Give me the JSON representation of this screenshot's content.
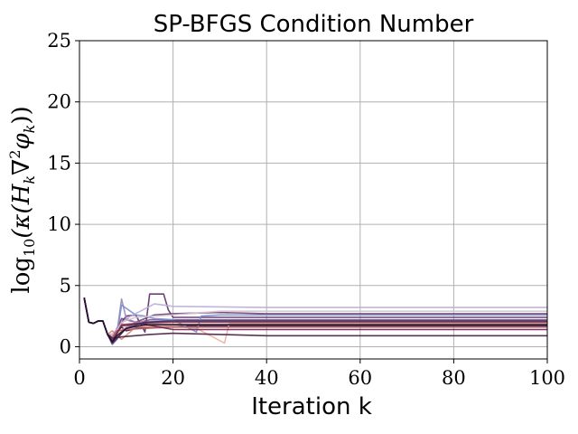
{
  "chart_data": {
    "type": "line",
    "title": "SP-BFGS Condition Number",
    "xlabel": "Iteration k",
    "ylabel": "log10(κ(H_k ∇²φ_k))",
    "ylabel_parts": {
      "fn": "log",
      "sub": "10",
      "body": "(κ(H",
      "k1": "k",
      "nabla": "∇",
      "sq": "2",
      "phi": "φ",
      "k2": "k",
      "close": "))"
    },
    "xlim": [
      0,
      100
    ],
    "ylim": [
      -1,
      25
    ],
    "xticks": [
      "0",
      "20",
      "40",
      "60",
      "80",
      "100"
    ],
    "yticks": [
      "0",
      "5",
      "10",
      "15",
      "20",
      "25"
    ],
    "grid": true,
    "series": [
      {
        "color": "#2e1535",
        "values": [
          [
            1,
            4.0
          ],
          [
            2,
            2.0
          ],
          [
            3,
            1.9
          ],
          [
            4,
            2.1
          ],
          [
            5,
            2.1
          ],
          [
            6,
            1.0
          ],
          [
            7,
            0.5
          ],
          [
            8,
            1.2
          ],
          [
            9,
            1.6
          ],
          [
            10,
            1.3
          ],
          [
            12,
            1.5
          ],
          [
            15,
            1.6
          ],
          [
            20,
            1.7
          ],
          [
            100,
            1.7
          ]
        ]
      },
      {
        "color": "#5a2d66",
        "values": [
          [
            1,
            4.0
          ],
          [
            2,
            2.0
          ],
          [
            3,
            1.9
          ],
          [
            4,
            2.1
          ],
          [
            5,
            2.1
          ],
          [
            6,
            1.0
          ],
          [
            7,
            0.3
          ],
          [
            8,
            1.5
          ],
          [
            10,
            2.5
          ],
          [
            12,
            2.6
          ],
          [
            14,
            1.2
          ],
          [
            15,
            4.3
          ],
          [
            18,
            4.3
          ],
          [
            19,
            3.0
          ],
          [
            20,
            2.4
          ],
          [
            100,
            2.4
          ]
        ]
      },
      {
        "color": "#6b3e73",
        "values": [
          [
            1,
            4.0
          ],
          [
            2,
            2.0
          ],
          [
            3,
            1.9
          ],
          [
            4,
            2.1
          ],
          [
            5,
            2.1
          ],
          [
            6,
            1.0
          ],
          [
            7,
            0.5
          ],
          [
            9,
            2.3
          ],
          [
            12,
            2.0
          ],
          [
            16,
            2.6
          ],
          [
            20,
            2.7
          ],
          [
            30,
            2.8
          ],
          [
            40,
            2.7
          ],
          [
            100,
            2.7
          ]
        ]
      },
      {
        "color": "#7a5290",
        "values": [
          [
            1,
            4.0
          ],
          [
            2,
            2.0
          ],
          [
            3,
            1.9
          ],
          [
            4,
            2.1
          ],
          [
            5,
            2.1
          ],
          [
            6,
            1.0
          ],
          [
            7,
            0.2
          ],
          [
            8,
            0.6
          ],
          [
            10,
            1.6
          ],
          [
            12,
            1.9
          ],
          [
            15,
            2.2
          ],
          [
            100,
            2.2
          ]
        ]
      },
      {
        "color": "#9a86b8",
        "values": [
          [
            1,
            4.0
          ],
          [
            2,
            2.0
          ],
          [
            3,
            1.9
          ],
          [
            4,
            2.1
          ],
          [
            5,
            2.1
          ],
          [
            6,
            1.0
          ],
          [
            7,
            0.6
          ],
          [
            8,
            1.1
          ],
          [
            9,
            3.9
          ],
          [
            10,
            2.3
          ],
          [
            12,
            2.0
          ],
          [
            20,
            2.1
          ],
          [
            100,
            2.1
          ]
        ]
      },
      {
        "color": "#7a8ec9",
        "values": [
          [
            1,
            4.0
          ],
          [
            2,
            2.0
          ],
          [
            3,
            1.9
          ],
          [
            4,
            2.1
          ],
          [
            5,
            2.1
          ],
          [
            6,
            1.0
          ],
          [
            7,
            0.3
          ],
          [
            8,
            0.9
          ],
          [
            9,
            3.4
          ],
          [
            12,
            2.6
          ],
          [
            14,
            2.5
          ],
          [
            16,
            2.3
          ],
          [
            20,
            2.2
          ],
          [
            25,
            1.2
          ],
          [
            26,
            2.5
          ],
          [
            30,
            2.6
          ],
          [
            100,
            2.6
          ]
        ]
      },
      {
        "color": "#b9aed6",
        "values": [
          [
            1,
            4.0
          ],
          [
            2,
            2.0
          ],
          [
            3,
            1.9
          ],
          [
            4,
            2.1
          ],
          [
            5,
            2.1
          ],
          [
            6,
            1.0
          ],
          [
            7,
            1.0
          ],
          [
            10,
            2.3
          ],
          [
            16,
            3.5
          ],
          [
            20,
            3.3
          ],
          [
            40,
            3.2
          ],
          [
            100,
            3.2
          ]
        ]
      },
      {
        "color": "#d6c3cf",
        "values": [
          [
            1,
            4.0
          ],
          [
            2,
            2.0
          ],
          [
            3,
            1.9
          ],
          [
            4,
            2.1
          ],
          [
            5,
            2.1
          ],
          [
            6,
            1.0
          ],
          [
            7,
            0.4
          ],
          [
            9,
            2.0
          ],
          [
            12,
            2.4
          ],
          [
            20,
            2.6
          ],
          [
            30,
            2.9
          ],
          [
            100,
            2.9
          ]
        ]
      },
      {
        "color": "#e8b2a0",
        "values": [
          [
            1,
            4.0
          ],
          [
            2,
            2.0
          ],
          [
            3,
            1.9
          ],
          [
            4,
            2.1
          ],
          [
            5,
            2.1
          ],
          [
            6,
            1.0
          ],
          [
            7,
            0.5
          ],
          [
            8,
            1.0
          ],
          [
            10,
            1.6
          ],
          [
            20,
            1.7
          ],
          [
            25,
            1.5
          ],
          [
            31,
            0.3
          ],
          [
            32,
            1.9
          ],
          [
            100,
            1.9
          ]
        ]
      },
      {
        "color": "#d68a7a",
        "values": [
          [
            1,
            4.0
          ],
          [
            2,
            2.0
          ],
          [
            3,
            1.9
          ],
          [
            4,
            2.1
          ],
          [
            5,
            2.1
          ],
          [
            6,
            1.0
          ],
          [
            7,
            1.3
          ],
          [
            9,
            0.6
          ],
          [
            12,
            1.6
          ],
          [
            16,
            1.8
          ],
          [
            20,
            1.8
          ],
          [
            100,
            1.8
          ]
        ]
      },
      {
        "color": "#b35c6a",
        "values": [
          [
            1,
            4.0
          ],
          [
            2,
            2.0
          ],
          [
            3,
            1.9
          ],
          [
            4,
            2.1
          ],
          [
            5,
            2.1
          ],
          [
            6,
            1.0
          ],
          [
            7,
            0.8
          ],
          [
            8,
            1.3
          ],
          [
            10,
            1.4
          ],
          [
            14,
            1.5
          ],
          [
            20,
            1.6
          ],
          [
            100,
            1.6
          ]
        ]
      },
      {
        "color": "#8f3a55",
        "values": [
          [
            1,
            4.0
          ],
          [
            2,
            2.0
          ],
          [
            3,
            1.9
          ],
          [
            4,
            2.1
          ],
          [
            5,
            2.1
          ],
          [
            6,
            1.0
          ],
          [
            7,
            0.4
          ],
          [
            9,
            1.8
          ],
          [
            12,
            1.9
          ],
          [
            20,
            2.0
          ],
          [
            100,
            2.0
          ]
        ]
      },
      {
        "color": "#6e2247",
        "values": [
          [
            1,
            4.0
          ],
          [
            2,
            2.0
          ],
          [
            3,
            1.9
          ],
          [
            4,
            2.1
          ],
          [
            5,
            2.1
          ],
          [
            6,
            1.0
          ],
          [
            7,
            0.5
          ],
          [
            9,
            1.7
          ],
          [
            13,
            1.9
          ],
          [
            20,
            1.4
          ],
          [
            100,
            1.4
          ]
        ]
      },
      {
        "color": "#4a1e3f",
        "values": [
          [
            1,
            4.0
          ],
          [
            2,
            2.0
          ],
          [
            3,
            1.9
          ],
          [
            4,
            2.1
          ],
          [
            5,
            2.1
          ],
          [
            6,
            1.0
          ],
          [
            7,
            0.7
          ],
          [
            9,
            0.8
          ],
          [
            15,
            1.0
          ],
          [
            20,
            1.1
          ],
          [
            30,
            1.0
          ],
          [
            40,
            0.9
          ],
          [
            100,
            0.9
          ]
        ]
      },
      {
        "color": "#3a2a55",
        "values": [
          [
            1,
            4.0
          ],
          [
            2,
            2.0
          ],
          [
            3,
            1.9
          ],
          [
            4,
            2.1
          ],
          [
            5,
            2.1
          ],
          [
            6,
            1.0
          ],
          [
            7,
            0.3
          ],
          [
            10,
            1.5
          ],
          [
            14,
            2.0
          ],
          [
            20,
            2.1
          ],
          [
            100,
            2.1
          ]
        ]
      },
      {
        "color": "#1f0f2a",
        "values": [
          [
            1,
            4.0
          ],
          [
            2,
            2.0
          ],
          [
            3,
            1.9
          ],
          [
            4,
            2.1
          ],
          [
            5,
            2.1
          ],
          [
            6,
            1.0
          ],
          [
            7,
            0.4
          ],
          [
            8,
            0.9
          ],
          [
            10,
            1.5
          ],
          [
            14,
            1.8
          ],
          [
            20,
            1.8
          ],
          [
            100,
            1.8
          ]
        ]
      }
    ]
  }
}
